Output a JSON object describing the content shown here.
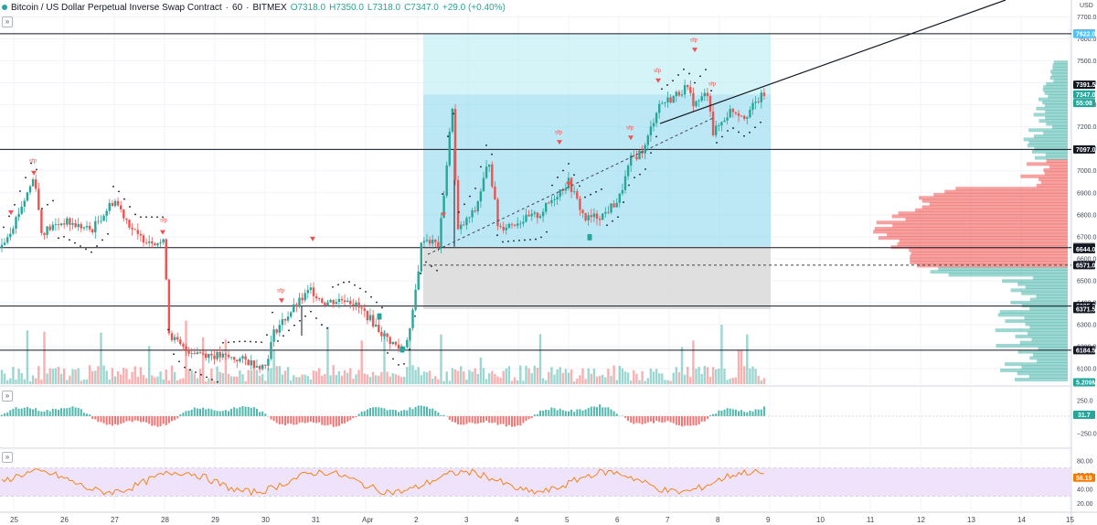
{
  "header": {
    "symbol": "Bitcoin / US Dollar Perpetual Inverse Swap Contract",
    "interval": "60",
    "exchange": "BITMEX",
    "open": "O7318.0",
    "high": "H7350.0",
    "low": "L7318.0",
    "close": "C7347.0",
    "change": "+29.0 (+0.40%)",
    "currency": "USD",
    "collapse_glyph": "»",
    "pane_btn_1": "»",
    "pane_btn_2": "»"
  },
  "colors": {
    "up": "#26a69a",
    "down": "#ef5350",
    "range_fill": "#b2ebf2",
    "range_dark": "#8fd8ee",
    "range_gray": "#d9d9d9",
    "rsi_band": "#efe2fb",
    "rsi_line": "#f57c00",
    "last_price_tag": "#26a69a",
    "level_tag": "#131722"
  },
  "chart_data": {
    "type": "candlestick",
    "y_axis": {
      "ticks": [
        "7700.0",
        "7600.0",
        "7500.0",
        "7400.0",
        "7300.0",
        "7200.0",
        "7100.0",
        "7000.0",
        "6900.0",
        "6800.0",
        "6700.0",
        "6600.0",
        "6500.0",
        "6400.0",
        "6300.0",
        "6200.0",
        "6100.0"
      ],
      "range": [
        6030,
        7710
      ]
    },
    "x_axis": {
      "labels": [
        "25",
        "26",
        "27",
        "28",
        "29",
        "30",
        "31",
        "Apr",
        "2",
        "3",
        "4",
        "5",
        "6",
        "7",
        "8",
        "9",
        "10",
        "11",
        "12",
        "13",
        "14",
        "15"
      ]
    },
    "price_tags": [
      {
        "label": "7623.0",
        "value": 7623,
        "kind": "level"
      },
      {
        "label": "7622.0",
        "value": 7622,
        "kind": "range"
      },
      {
        "label": "7391.5",
        "value": 7391.5,
        "kind": "level"
      },
      {
        "label": "7347.0",
        "value": 7347,
        "kind": "last"
      },
      {
        "label": "55:08",
        "value": 7308,
        "kind": "countdown"
      },
      {
        "label": "7097.0",
        "value": 7097,
        "kind": "level"
      },
      {
        "label": "6655.5",
        "value": 6655.5,
        "kind": "range"
      },
      {
        "label": "6650.5",
        "value": 6650.5,
        "kind": "level"
      },
      {
        "label": "6644.0",
        "value": 6644,
        "kind": "level"
      },
      {
        "label": "6571.0",
        "value": 6571,
        "kind": "level"
      },
      {
        "label": "6385.0",
        "value": 6385,
        "kind": "level"
      },
      {
        "label": "6371.5",
        "value": 6371.5,
        "kind": "level"
      },
      {
        "label": "6184.5",
        "value": 6184.5,
        "kind": "level"
      },
      {
        "label": "5.209M",
        "value": 6024,
        "kind": "volume"
      }
    ],
    "horizontal_levels": [
      7623,
      7097,
      6650.5,
      6385,
      6184.5
    ],
    "dashed_level": 6571,
    "signals": [
      "sfp",
      "sfp",
      "sfp",
      "sfp",
      "sfp",
      "sfp",
      "sfp",
      "sfp"
    ],
    "osc_axis": [
      "250.0",
      "0",
      "−250.0"
    ],
    "osc_value": "31.7",
    "rsi_axis": [
      "80.00",
      "60.00",
      "40.00",
      "20.00"
    ],
    "rsi_value": "56.19",
    "rsi_band": [
      30,
      70
    ]
  }
}
